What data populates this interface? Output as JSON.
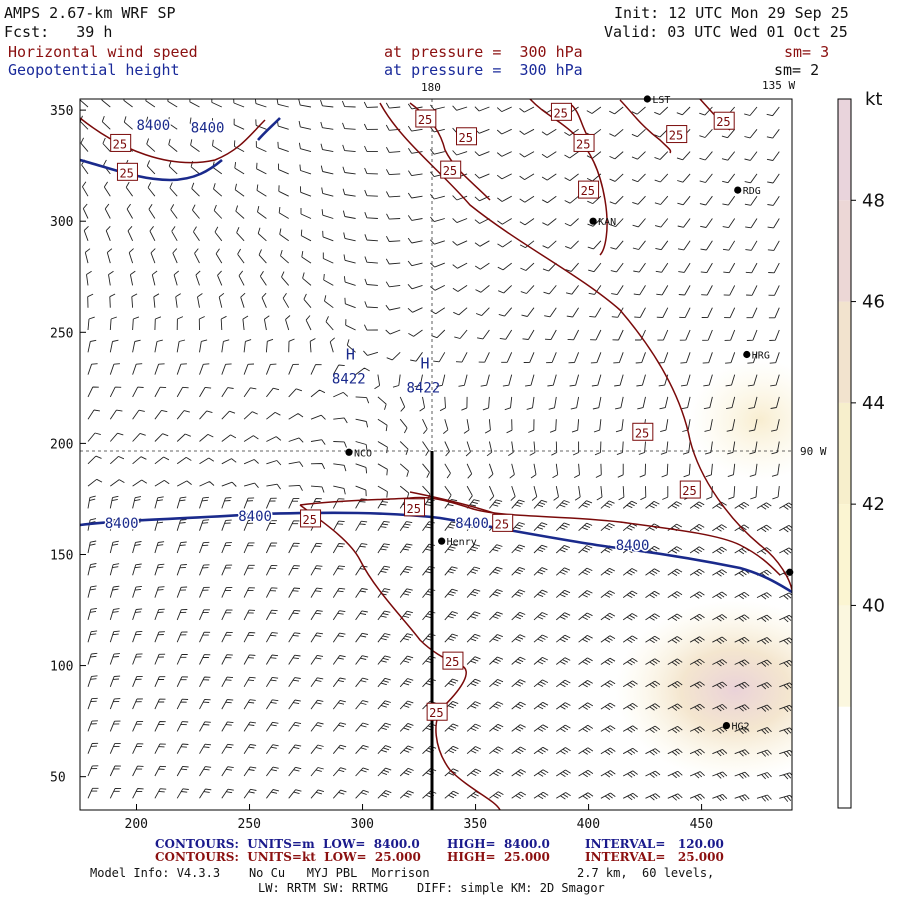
{
  "header": {
    "model": "AMPS 2.67-km WRF SP",
    "init": "Init: 12 UTC Mon 29 Sep 25",
    "fcst": "Fcst:   39 h",
    "valid": "Valid: 03 UTC Wed 01 Oct 25",
    "field1_name": "Horizontal wind speed",
    "field1_level": "at pressure =  300 hPa",
    "field1_sm": "sm= 3",
    "field2_name": "Geopotential height",
    "field2_level": "at pressure =  300 hPa",
    "field2_sm": "sm= 2"
  },
  "map": {
    "lon_180": "180",
    "lon_135w": "135 W",
    "lon_90w": "90 W",
    "x_ticks": [
      200,
      250,
      300,
      350,
      400,
      450
    ],
    "y_ticks": [
      50,
      100,
      150,
      200,
      250,
      300,
      350
    ],
    "x_range": [
      175,
      490
    ],
    "y_range": [
      35,
      355
    ],
    "height_labels": [
      {
        "text": "8400",
        "x": 224,
        "y": 340
      },
      {
        "text": "8400",
        "x": 200,
        "y": 341
      },
      {
        "text": "8400",
        "x": 186,
        "y": 162
      },
      {
        "text": "8400",
        "x": 245,
        "y": 165
      },
      {
        "text": "8400",
        "x": 341,
        "y": 162
      },
      {
        "text": "8400",
        "x": 412,
        "y": 152
      }
    ],
    "highs": [
      {
        "letter": "H",
        "value": "8422",
        "x": 290,
        "y": 236
      },
      {
        "letter": "H",
        "value": "8422",
        "x": 323,
        "y": 232
      }
    ],
    "wind_labels": [
      {
        "text": "25",
        "x": 193,
        "y": 335
      },
      {
        "text": "25",
        "x": 196,
        "y": 322
      },
      {
        "text": "25",
        "x": 328,
        "y": 346
      },
      {
        "text": "25",
        "x": 346,
        "y": 338
      },
      {
        "text": "25",
        "x": 339,
        "y": 323
      },
      {
        "text": "25",
        "x": 388,
        "y": 349
      },
      {
        "text": "25",
        "x": 398,
        "y": 335
      },
      {
        "text": "25",
        "x": 400,
        "y": 314
      },
      {
        "text": "25",
        "x": 439,
        "y": 339
      },
      {
        "text": "25",
        "x": 460,
        "y": 345
      },
      {
        "text": "25",
        "x": 424,
        "y": 205
      },
      {
        "text": "25",
        "x": 445,
        "y": 179
      },
      {
        "text": "25",
        "x": 277,
        "y": 166
      },
      {
        "text": "25",
        "x": 323,
        "y": 171
      },
      {
        "text": "25",
        "x": 362,
        "y": 164
      },
      {
        "text": "25",
        "x": 340,
        "y": 102
      },
      {
        "text": "25",
        "x": 333,
        "y": 79
      }
    ],
    "stations": [
      {
        "name": "RDG",
        "x": 466,
        "y": 314
      },
      {
        "name": "KAN",
        "x": 402,
        "y": 300
      },
      {
        "name": "HRG",
        "x": 470,
        "y": 240
      },
      {
        "name": "NCO",
        "x": 294,
        "y": 196
      },
      {
        "name": "Henry",
        "x": 335,
        "y": 156
      },
      {
        "name": "HG2",
        "x": 461,
        "y": 73
      },
      {
        "name": "LST",
        "x": 426,
        "y": 355
      },
      {
        "name": "",
        "x": 489,
        "y": 142
      }
    ]
  },
  "colorbar": {
    "unit": "kt",
    "labels": [
      "48",
      "46",
      "44",
      "42",
      "40"
    ],
    "colors": [
      "#ffffff",
      "#fbf7df",
      "#fbf5d2",
      "#f7efcc",
      "#f2e3ce",
      "#ecd7d6",
      "#e9d4dc"
    ]
  },
  "footer": {
    "row1_a": "CONTOURS:  UNITS=m  LOW=  8400.0",
    "row1_b": "HIGH=  8400.0",
    "row1_c": "INTERVAL=   120.00",
    "row2_a": "CONTOURS:  UNITS=kt  LOW=  25.000",
    "row2_b": "HIGH=  25.000",
    "row2_c": "INTERVAL=   25.000",
    "model_info": "Model Info: V4.3.3    No Cu   MYJ PBL  Morrison",
    "levels": "2.7 km,  60 levels,",
    "physics": "LW: RRTM SW: RRTMG    DIFF: simple KM: 2D Smagor"
  },
  "colors": {
    "height_contour": "#1a2a8c",
    "wind_contour": "#7a0a0a",
    "barb": "#222222"
  }
}
